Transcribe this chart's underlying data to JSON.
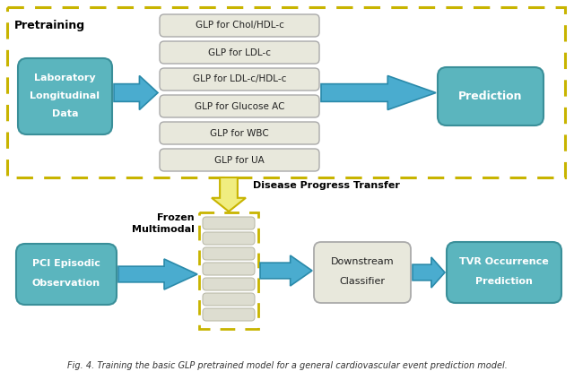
{
  "background": "#ffffff",
  "teal_color": "#5BB5BE",
  "teal_edge": "#3a8f99",
  "glp_color": "#E8E8DC",
  "glp_edge": "#AAAAAA",
  "dash_color": "#C8B400",
  "arrow_color": "#4AACCF",
  "arrow_edge": "#2a8aaa",
  "yellow_arrow_fill": "#F0ED80",
  "yellow_arrow_edge": "#C8B400",
  "layer_color": "#DDDDD0",
  "layer_edge": "#BBBBAA",
  "glp_labels": [
    "GLP for Chol/HDL-c",
    "GLP for LDL-c",
    "GLP for LDL-c/HDL-c",
    "GLP for Glucose AC",
    "GLP for WBC",
    "GLP for UA"
  ],
  "pretraining_label": "Pretraining",
  "lab_data_lines": [
    "Laboratory",
    "Longitudinal",
    "Data"
  ],
  "prediction_label": "Prediction",
  "pci_lines": [
    "PCI Episodic",
    "Observation"
  ],
  "frozen_line1": "Frozen",
  "frozen_line2": "Multimodal",
  "disease_transfer_label": "Disease Progress Transfer",
  "downstream_lines": [
    "Downstream",
    "Classifier"
  ],
  "tvr_lines": [
    "TVR Occurrence",
    "Prediction"
  ],
  "fig_caption": "Fig. 4. Training the basic GLP pretrained model for a general cardiovascular event prediction model."
}
